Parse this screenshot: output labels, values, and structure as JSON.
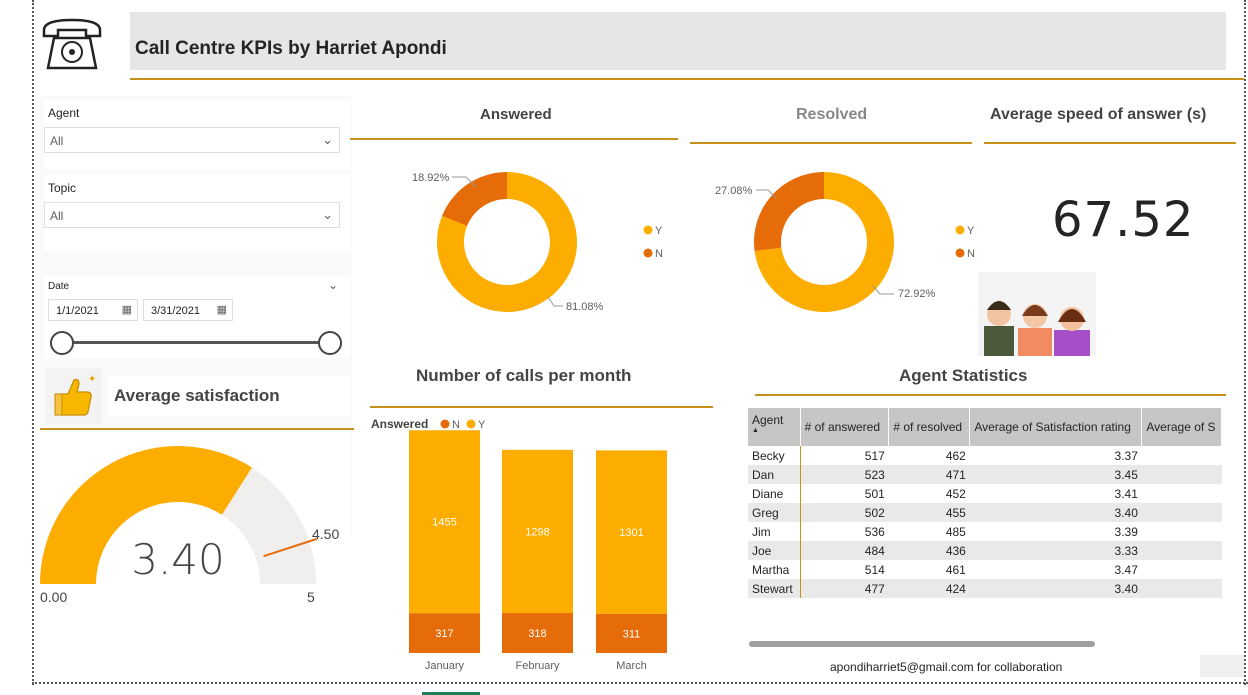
{
  "header": {
    "title": "Call Centre KPIs by Harriet Apondi",
    "icon": "telephone-icon"
  },
  "slicers": {
    "agent": {
      "label": "Agent",
      "value": "All"
    },
    "topic": {
      "label": "Topic",
      "value": "All"
    },
    "date": {
      "label": "Date",
      "start": "1/1/2021",
      "end": "3/31/2021"
    }
  },
  "satisfaction": {
    "title": "Average satisfaction",
    "icon": "thumbs-up-icon"
  },
  "answered": {
    "title": "Answered"
  },
  "resolved": {
    "title": "Resolved"
  },
  "speed": {
    "title": "Average speed of answer (s)",
    "value": "67.52",
    "image": "call-agents-illustration"
  },
  "monthly": {
    "title": "Number of calls per month",
    "legend_title": "Answered"
  },
  "agent_stats": {
    "title": "Agent Statistics",
    "columns": [
      "Agent",
      "# of answered",
      "# of resolved",
      "Average of Satisfaction rating",
      "Average of S"
    ],
    "rows": [
      [
        "Becky",
        "517",
        "462",
        "3.37"
      ],
      [
        "Dan",
        "523",
        "471",
        "3.45"
      ],
      [
        "Diane",
        "501",
        "452",
        "3.41"
      ],
      [
        "Greg",
        "502",
        "455",
        "3.40"
      ],
      [
        "Jim",
        "536",
        "485",
        "3.39"
      ],
      [
        "Joe",
        "484",
        "436",
        "3.33"
      ],
      [
        "Martha",
        "514",
        "461",
        "3.47"
      ],
      [
        "Stewart",
        "477",
        "424",
        "3.40"
      ]
    ]
  },
  "footer": {
    "text": "apondiharriet5@gmail.com for collaboration"
  },
  "colors": {
    "Y": "#fcad00",
    "N": "#e66c0a",
    "accent": "#c8921a",
    "gauge_bg": "#f0efee"
  },
  "chart_data": [
    {
      "type": "pie",
      "title": "Answered",
      "categories": [
        "Y",
        "N"
      ],
      "values": [
        81.08,
        18.92
      ],
      "labels": [
        "81.08%",
        "18.92%"
      ]
    },
    {
      "type": "pie",
      "title": "Resolved",
      "categories": [
        "Y",
        "N"
      ],
      "values": [
        72.92,
        27.08
      ],
      "labels": [
        "72.92%",
        "27.08%"
      ]
    },
    {
      "type": "bar",
      "stacked": true,
      "title": "Number of calls per month",
      "legend_title": "Answered",
      "legend": [
        "N",
        "Y"
      ],
      "categories": [
        "January",
        "February",
        "March"
      ],
      "series": [
        {
          "name": "N",
          "values": [
            317,
            318,
            311
          ]
        },
        {
          "name": "Y",
          "values": [
            1455,
            1298,
            1301
          ]
        }
      ]
    },
    {
      "type": "gauge",
      "title": "Average satisfaction",
      "value": 3.4,
      "value_label": "3.40",
      "min": 0,
      "max": 5,
      "min_label": "0.00",
      "max_label": "5",
      "target": 4.5,
      "target_label": "4.50"
    }
  ]
}
